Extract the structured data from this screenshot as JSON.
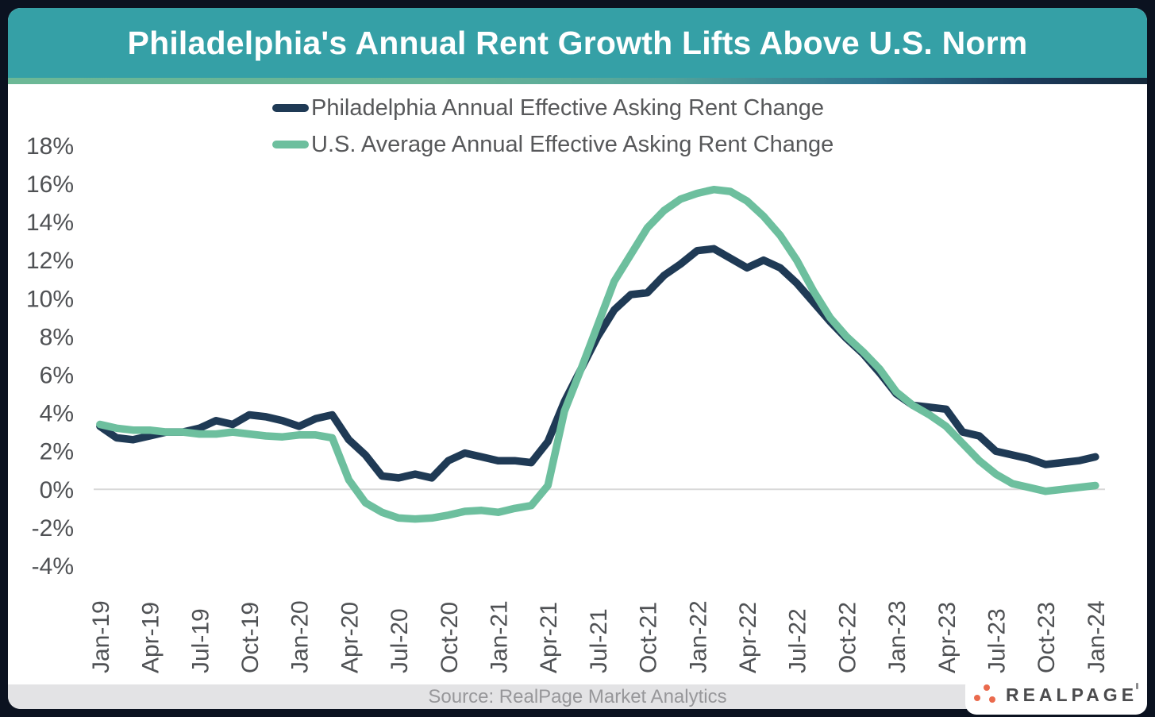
{
  "header": {
    "title": "Philadelphia's Annual Rent Growth Lifts Above U.S. Norm",
    "bg_color": "#35a0a6",
    "accent_gradient_left": "#6cb896",
    "accent_gradient_right": "#142739"
  },
  "legend": [
    {
      "label": "Philadelphia Annual Effective Asking Rent Change",
      "color": "#1f3a55"
    },
    {
      "label": "U.S. Average Annual Effective Asking Rent Change",
      "color": "#6dbf9e"
    }
  ],
  "chart_data": {
    "type": "line",
    "title": "Philadelphia's Annual Rent Growth Lifts Above U.S. Norm",
    "xlabel": "",
    "ylabel": "",
    "ylim": [
      -4,
      18
    ],
    "ytick_step": 2,
    "ytick_suffix": "%",
    "x_tick_every": 3,
    "grid": "horizontal line at 0% only",
    "grid_color": "#d9d9d9",
    "axis_text_color": "#4f5154",
    "legend_position": "top-center",
    "x": [
      "Jan-19",
      "Feb-19",
      "Mar-19",
      "Apr-19",
      "May-19",
      "Jun-19",
      "Jul-19",
      "Aug-19",
      "Sep-19",
      "Oct-19",
      "Nov-19",
      "Dec-19",
      "Jan-20",
      "Feb-20",
      "Mar-20",
      "Apr-20",
      "May-20",
      "Jun-20",
      "Jul-20",
      "Aug-20",
      "Sep-20",
      "Oct-20",
      "Nov-20",
      "Dec-20",
      "Jan-21",
      "Feb-21",
      "Mar-21",
      "Apr-21",
      "May-21",
      "Jun-21",
      "Jul-21",
      "Aug-21",
      "Sep-21",
      "Oct-21",
      "Nov-21",
      "Dec-21",
      "Jan-22",
      "Feb-22",
      "Mar-22",
      "Apr-22",
      "May-22",
      "Jun-22",
      "Jul-22",
      "Aug-22",
      "Sep-22",
      "Oct-22",
      "Nov-22",
      "Dec-22",
      "Jan-23",
      "Feb-23",
      "Mar-23",
      "Apr-23",
      "May-23",
      "Jun-23",
      "Jul-23",
      "Aug-23",
      "Sep-23",
      "Oct-23",
      "Nov-23",
      "Dec-23",
      "Jan-24"
    ],
    "series": [
      {
        "name": "Philadelphia Annual Effective Asking Rent Change",
        "color": "#1f3a55",
        "data_name": "philadelphia-line",
        "values": [
          3.3,
          2.7,
          2.6,
          2.8,
          3.0,
          3.0,
          3.2,
          3.6,
          3.4,
          3.9,
          3.8,
          3.6,
          3.3,
          3.7,
          3.9,
          2.6,
          1.8,
          0.7,
          0.6,
          0.8,
          0.6,
          1.5,
          1.9,
          1.7,
          1.5,
          1.5,
          1.4,
          2.5,
          4.6,
          6.3,
          8.0,
          9.4,
          10.2,
          10.3,
          11.2,
          11.8,
          12.5,
          12.6,
          12.1,
          11.6,
          12.0,
          11.6,
          10.8,
          9.8,
          8.8,
          7.9,
          7.1,
          6.1,
          5.0,
          4.4,
          4.3,
          4.2,
          3.0,
          2.8,
          2.0,
          1.8,
          1.6,
          1.3,
          1.4,
          1.5,
          1.7
        ]
      },
      {
        "name": "U.S. Average Annual Effective Asking Rent Change",
        "color": "#6dbf9e",
        "data_name": "us-average-line",
        "values": [
          3.4,
          3.2,
          3.1,
          3.1,
          3.0,
          3.0,
          2.9,
          2.9,
          3.0,
          2.9,
          2.8,
          2.75,
          2.85,
          2.85,
          2.7,
          0.5,
          -0.7,
          -1.2,
          -1.5,
          -1.55,
          -1.5,
          -1.35,
          -1.15,
          -1.1,
          -1.2,
          -1.0,
          -0.85,
          0.2,
          4.1,
          6.3,
          8.6,
          10.9,
          12.3,
          13.7,
          14.6,
          15.2,
          15.5,
          15.7,
          15.6,
          15.1,
          14.3,
          13.3,
          12.0,
          10.4,
          9.0,
          8.0,
          7.2,
          6.3,
          5.1,
          4.4,
          3.9,
          3.3,
          2.4,
          1.5,
          0.8,
          0.3,
          0.1,
          -0.1,
          0.0,
          0.1,
          0.2
        ]
      }
    ]
  },
  "footer": {
    "source": "Source: RealPage Market Analytics",
    "logo_text": "REALPAGE",
    "logo_dot_color": "#ea6a4d"
  }
}
